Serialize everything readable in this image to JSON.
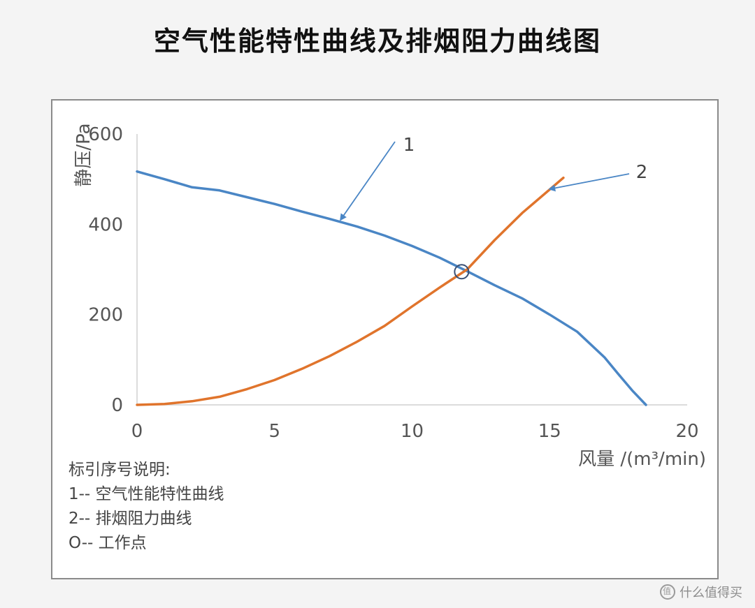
{
  "page": {
    "title": "空气性能特性曲线及排烟阻力曲线图"
  },
  "chart_data": {
    "type": "line",
    "title": "空气性能特性曲线及排烟阻力曲线图",
    "xlabel": "风量 /(m³/min)",
    "ylabel": "静压/Pa",
    "xlim": [
      0,
      20
    ],
    "ylim": [
      0,
      600
    ],
    "x_ticks": [
      "0",
      "5",
      "10",
      "15",
      "20"
    ],
    "y_ticks": [
      "0",
      "200",
      "400",
      "600"
    ],
    "grid": false,
    "series": [
      {
        "name": "1",
        "color": "#4a86c5",
        "x": [
          0,
          1,
          2,
          3,
          4,
          5,
          6,
          7,
          8,
          9,
          10,
          11,
          12,
          13,
          14,
          15,
          16,
          17,
          17.5,
          18,
          18.5
        ],
        "y": [
          517,
          500,
          482,
          475,
          460,
          445,
          428,
          412,
          395,
          375,
          352,
          326,
          296,
          265,
          236,
          200,
          162,
          105,
          68,
          32,
          0
        ]
      },
      {
        "name": "2",
        "color": "#e0742c",
        "x": [
          0,
          1,
          2,
          3,
          4,
          5,
          6,
          7,
          8,
          9,
          10,
          11,
          12,
          13,
          14,
          15.5
        ],
        "y": [
          0,
          2,
          8,
          18,
          35,
          55,
          80,
          108,
          140,
          175,
          218,
          260,
          300,
          365,
          425,
          503
        ]
      }
    ],
    "annotations": [
      {
        "label": "1",
        "points_to": "series 1"
      },
      {
        "label": "2",
        "points_to": "series 2"
      }
    ],
    "operating_point": {
      "x": 11.8,
      "y": 295,
      "marker": "circle"
    }
  },
  "notes": {
    "heading": "标引序号说明:",
    "items": [
      "1-- 空气性能特性曲线",
      "2-- 排烟阻力曲线",
      "O-- 工作点"
    ]
  },
  "watermark": {
    "text": "什么值得买"
  }
}
